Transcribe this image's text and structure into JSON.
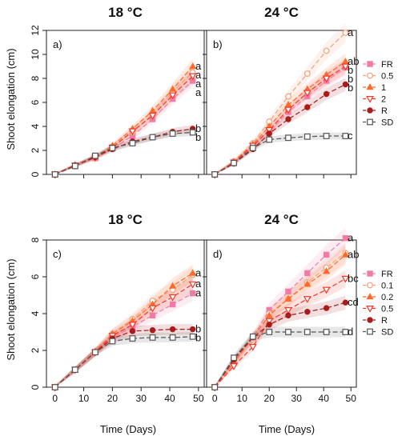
{
  "figure": {
    "ylabel_top": "Shoot elongation (cm)",
    "ylabel_bottom": "Shoot elongation (cm)",
    "xlabel_left": "Time (Days)",
    "xlabel_right": "Time (Days)"
  },
  "colors": {
    "FR": "#f07ca6",
    "0.5_top": "#f4a07c",
    "1": "#ff6a2a",
    "2": "#f23a2a",
    "R": "#a81c1c",
    "SD": "#555555",
    "0.1": "#f4a07c",
    "0.2": "#ff6a2a",
    "0.5_bottom": "#f23a2a"
  },
  "chart_data": [
    {
      "panel": "a)",
      "title": "18 °C",
      "type": "line",
      "x": [
        0,
        7,
        14,
        20,
        27,
        34,
        41,
        48
      ],
      "xlim": [
        -3,
        52
      ],
      "xticks": [
        0,
        10,
        20,
        30,
        40,
        50
      ],
      "ylim": [
        0,
        12
      ],
      "yticks": [
        0,
        2,
        4,
        6,
        8,
        10,
        12
      ],
      "grid": false,
      "series": [
        {
          "name": "FR",
          "marker": "square-filled",
          "color": "#f07ca6",
          "values": [
            0,
            0.7,
            1.35,
            2.15,
            3.2,
            4.6,
            6.3,
            7.8
          ],
          "sig": "a"
        },
        {
          "name": "0.5",
          "marker": "circle-open",
          "color": "#f4a07c",
          "values": [
            0,
            0.75,
            1.4,
            2.3,
            3.5,
            5.0,
            6.9,
            8.5
          ],
          "sig": "a"
        },
        {
          "name": "1",
          "marker": "triangle-up-filled",
          "color": "#ff6a2a",
          "values": [
            0,
            0.8,
            1.45,
            2.4,
            3.8,
            5.3,
            7.1,
            9.0
          ],
          "sig": "a"
        },
        {
          "name": "2",
          "marker": "triangle-down-open",
          "color": "#f23a2a",
          "values": [
            0,
            0.75,
            1.4,
            2.25,
            3.6,
            4.9,
            6.6,
            8.2
          ],
          "sig": "a"
        },
        {
          "name": "R",
          "marker": "circle-filled",
          "color": "#a81c1c",
          "values": [
            0,
            0.75,
            1.45,
            2.1,
            2.75,
            3.1,
            3.55,
            3.8
          ],
          "sig": "b"
        },
        {
          "name": "SD",
          "marker": "square-open",
          "color": "#555555",
          "values": [
            0,
            0.7,
            1.55,
            2.2,
            2.6,
            3.1,
            3.4,
            3.5
          ],
          "sig": "b"
        }
      ]
    },
    {
      "panel": "b)",
      "title": "24 °C",
      "type": "line",
      "x": [
        0,
        7,
        14,
        20,
        27,
        34,
        41,
        48
      ],
      "xlim": [
        -3,
        52
      ],
      "xticks": [
        0,
        10,
        20,
        30,
        40,
        50
      ],
      "ylim": [
        0,
        12
      ],
      "yticks": [
        0,
        2,
        4,
        6,
        8,
        10,
        12
      ],
      "grid": false,
      "series": [
        {
          "name": "FR",
          "marker": "square-filled",
          "color": "#f07ca6",
          "values": [
            0,
            1.0,
            2.35,
            3.6,
            5.2,
            6.5,
            7.8,
            8.9
          ],
          "sig": "b"
        },
        {
          "name": "0.5",
          "marker": "circle-open",
          "color": "#f4a07c",
          "values": [
            0,
            1.1,
            2.6,
            4.4,
            6.5,
            8.4,
            10.3,
            11.8
          ],
          "sig": "a"
        },
        {
          "name": "1",
          "marker": "triangle-up-filled",
          "color": "#ff6a2a",
          "values": [
            0,
            1.05,
            2.5,
            4.0,
            5.8,
            7.1,
            8.3,
            9.4
          ],
          "sig": "ab"
        },
        {
          "name": "2",
          "marker": "triangle-down-open",
          "color": "#f23a2a",
          "values": [
            0,
            1.0,
            2.4,
            3.7,
            5.4,
            6.8,
            8.0,
            9.0
          ],
          "sig": "b"
        },
        {
          "name": "R",
          "marker": "circle-filled",
          "color": "#a81c1c",
          "values": [
            0,
            0.9,
            2.1,
            3.4,
            4.6,
            5.6,
            6.7,
            7.5
          ],
          "sig": "b"
        },
        {
          "name": "SD",
          "marker": "square-open",
          "color": "#555555",
          "values": [
            0,
            0.95,
            2.2,
            2.9,
            3.05,
            3.15,
            3.2,
            3.2
          ],
          "sig": "c"
        }
      ],
      "legend": {
        "placement": "right",
        "entries": [
          "FR",
          "0.5",
          "1",
          "2",
          "R",
          "SD"
        ]
      }
    },
    {
      "panel": "c)",
      "title": "18 °C",
      "type": "line",
      "x": [
        0,
        7,
        14,
        20,
        27,
        34,
        41,
        48
      ],
      "xlim": [
        -3,
        52
      ],
      "xticks": [
        0,
        10,
        20,
        30,
        40,
        50
      ],
      "ylim": [
        0,
        8
      ],
      "yticks": [
        0,
        2,
        4,
        6,
        8
      ],
      "grid": false,
      "series": [
        {
          "name": "FR",
          "marker": "square-filled",
          "color": "#f07ca6",
          "values": [
            0,
            0.95,
            1.9,
            2.7,
            3.3,
            3.9,
            4.5,
            5.1
          ],
          "sig": "a"
        },
        {
          "name": "0.5",
          "marker": "circle-open",
          "color": "#f4a07c",
          "values": [
            0,
            0.95,
            1.9,
            2.9,
            3.7,
            4.7,
            5.3,
            6.1
          ],
          "sig": ""
        },
        {
          "name": "1",
          "marker": "triangle-up-filled",
          "color": "#ff6a2a",
          "values": [
            0,
            0.95,
            1.95,
            2.9,
            3.6,
            4.5,
            5.5,
            6.2
          ],
          "sig": "a"
        },
        {
          "name": "2",
          "marker": "triangle-down-open",
          "color": "#f23a2a",
          "values": [
            0,
            0.95,
            1.9,
            2.8,
            3.4,
            4.3,
            4.9,
            5.6
          ],
          "sig": "a"
        },
        {
          "name": "R",
          "marker": "circle-filled",
          "color": "#a81c1c",
          "values": [
            0,
            0.95,
            1.9,
            2.65,
            3.05,
            3.1,
            3.15,
            3.15
          ],
          "sig": "b"
        },
        {
          "name": "SD",
          "marker": "square-open",
          "color": "#555555",
          "values": [
            0,
            0.95,
            1.9,
            2.5,
            2.65,
            2.7,
            2.7,
            2.75
          ],
          "sig": "b"
        }
      ]
    },
    {
      "panel": "d)",
      "title": "24 °C",
      "type": "line",
      "x": [
        0,
        7,
        14,
        20,
        27,
        34,
        41,
        48
      ],
      "xlim": [
        -3,
        52
      ],
      "xticks": [
        0,
        10,
        20,
        30,
        40,
        50
      ],
      "ylim": [
        0,
        8
      ],
      "yticks": [
        0,
        2,
        4,
        6,
        8
      ],
      "grid": false,
      "series": [
        {
          "name": "FR",
          "marker": "square-filled",
          "color": "#f07ca6",
          "values": [
            0,
            1.4,
            2.7,
            4.2,
            5.2,
            6.2,
            7.2,
            8.1
          ],
          "sig": "a"
        },
        {
          "name": "0.1",
          "marker": "circle-open",
          "color": "#f4a07c",
          "values": [
            0,
            1.3,
            2.6,
            4.0,
            4.8,
            5.7,
            6.5,
            7.3
          ],
          "sig": ""
        },
        {
          "name": "0.2",
          "marker": "triangle-up-filled",
          "color": "#ff6a2a",
          "values": [
            0,
            1.35,
            2.7,
            3.9,
            4.8,
            5.6,
            6.3,
            7.2
          ],
          "sig": "ab"
        },
        {
          "name": "0.5",
          "marker": "triangle-down-open",
          "color": "#f23a2a",
          "values": [
            0,
            1.15,
            2.2,
            3.6,
            4.2,
            4.8,
            5.3,
            5.9
          ],
          "sig": "bc"
        },
        {
          "name": "R",
          "marker": "circle-filled",
          "color": "#a81c1c",
          "values": [
            0,
            1.5,
            2.7,
            3.4,
            3.9,
            4.1,
            4.3,
            4.6
          ],
          "sig": "cd"
        },
        {
          "name": "SD",
          "marker": "square-open",
          "color": "#555555",
          "values": [
            0,
            1.6,
            2.75,
            3.0,
            3.0,
            3.0,
            3.0,
            3.0
          ],
          "sig": "d"
        }
      ],
      "legend": {
        "placement": "right",
        "entries": [
          "FR",
          "0.1",
          "0.2",
          "0.5",
          "R",
          "SD"
        ]
      }
    }
  ]
}
